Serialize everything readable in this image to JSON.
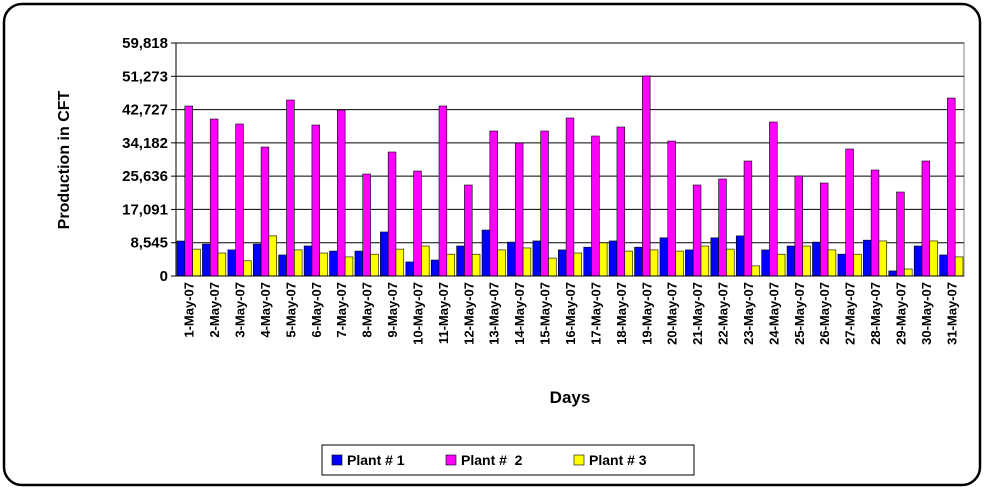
{
  "chart_data": {
    "type": "bar",
    "y_label": "Production in CFT",
    "x_label": "Days",
    "categories": [
      "1-May-07",
      "2-May-07",
      "3-May-07",
      "4-May-07",
      "5-May-07",
      "6-May-07",
      "7-May-07",
      "8-May-07",
      "9-May-07",
      "10-May-07",
      "11-May-07",
      "12-May-07",
      "13-May-07",
      "14-May-07",
      "15-May-07",
      "16-May-07",
      "17-May-07",
      "18-May-07",
      "19-May-07",
      "20-May-07",
      "21-May-07",
      "22-May-07",
      "23-May-07",
      "24-May-07",
      "25-May-07",
      "26-May-07",
      "27-May-07",
      "28-May-07",
      "29-May-07",
      "30-May-07",
      "31-May-07"
    ],
    "series": [
      {
        "name": "Plant # 1",
        "color": "#0000ff",
        "values": [
          8980,
          8200,
          6700,
          8200,
          5400,
          7700,
          6400,
          6400,
          11300,
          3600,
          4100,
          7700,
          11800,
          8700,
          9000,
          6700,
          7400,
          9000,
          7400,
          9800,
          6700,
          9800,
          10300,
          6700,
          7700,
          8700,
          5600,
          9200,
          1300,
          7700,
          5400
        ]
      },
      {
        "name": "Plant #  2",
        "color": "#ff00ff",
        "values": [
          43640,
          40300,
          39020,
          33110,
          45180,
          38760,
          42610,
          26180,
          31830,
          26950,
          43640,
          23360,
          37220,
          34140,
          37220,
          40560,
          35940,
          38250,
          51340,
          34650,
          23360,
          24900,
          29520,
          39530,
          25670,
          23870,
          32600,
          27210,
          21560,
          29520,
          45690
        ]
      },
      {
        "name": "Plant # 3",
        "color": "#ffff00",
        "values": [
          6900,
          5900,
          3900,
          10300,
          6700,
          5900,
          4900,
          5600,
          6900,
          7700,
          5600,
          5600,
          6700,
          7200,
          4600,
          5900,
          8500,
          6400,
          6700,
          6400,
          7700,
          6900,
          2600,
          5600,
          7700,
          6700,
          5600,
          9000,
          1800,
          9000,
          4900
        ]
      }
    ],
    "ylim": [
      0,
      59818
    ],
    "yticks": [
      0,
      {
        "value": 8545,
        "label": "8,545"
      },
      {
        "value": 17091,
        "label": "17,091"
      },
      {
        "value": 25636,
        "label": "25,636"
      },
      {
        "value": 34182,
        "label": "34,182"
      },
      {
        "value": 42727,
        "label": "42,727"
      },
      {
        "value": 51273,
        "label": "51,273"
      },
      {
        "value": 59818,
        "label": "59,818"
      }
    ],
    "grid": true,
    "legend": "bottom"
  }
}
